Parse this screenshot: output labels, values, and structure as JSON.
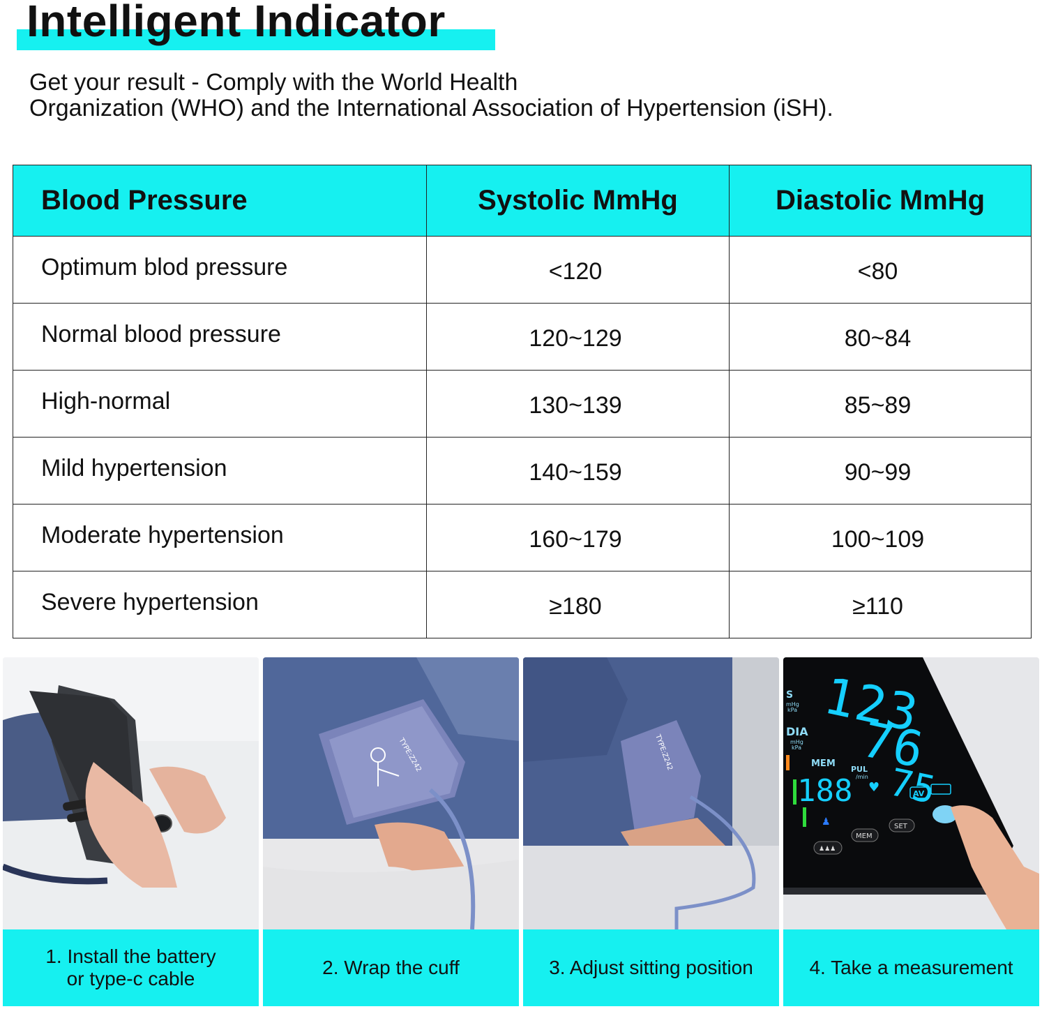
{
  "header": {
    "title": "Intelligent Indicator",
    "subtitle_line1": "Get your result - Comply with the World Health",
    "subtitle_line2": "Organization (WHO) and the International Association of Hypertension (iSH)."
  },
  "table": {
    "columns": [
      "Blood Pressure",
      "Systolic MmHg",
      "Diastolic MmHg"
    ],
    "rows": [
      {
        "category": "Optimum blod pressure",
        "systolic": "<120",
        "diastolic": "<80"
      },
      {
        "category": "Normal blood pressure",
        "systolic": "120~129",
        "diastolic": "80~84"
      },
      {
        "category": "High-normal",
        "systolic": "130~139",
        "diastolic": "85~89"
      },
      {
        "category": "Mild hypertension",
        "systolic": "140~159",
        "diastolic": "90~99"
      },
      {
        "category": "Moderate hypertension",
        "systolic": "160~179",
        "diastolic": "100~109"
      },
      {
        "category": "Severe hypertension",
        "systolic": "≥180",
        "diastolic": "≥110"
      }
    ]
  },
  "steps": [
    {
      "line1": "1. Install the battery",
      "line2": "or type-c cable"
    },
    {
      "line1": "2. Wrap the cuff"
    },
    {
      "line1": "3. Adjust sitting position"
    },
    {
      "line1": "4. Take a measurement"
    }
  ],
  "monitor_display": {
    "sys_value": "123",
    "dia_value": "76",
    "pulse_value": "75",
    "mem_value": "188",
    "labels": {
      "sys": "S",
      "unit1": "mHg",
      "unit2": "kPa",
      "dia": "DIA",
      "mem": "MEM",
      "pul": "PUL",
      "per_min": "/min",
      "av": "AV",
      "mem_button": "MEM",
      "set_button": "SET"
    }
  },
  "cuff_label": "TYPE:Z242",
  "colors": {
    "accent": "#16f0f0",
    "border": "#222222",
    "text": "#111111"
  }
}
